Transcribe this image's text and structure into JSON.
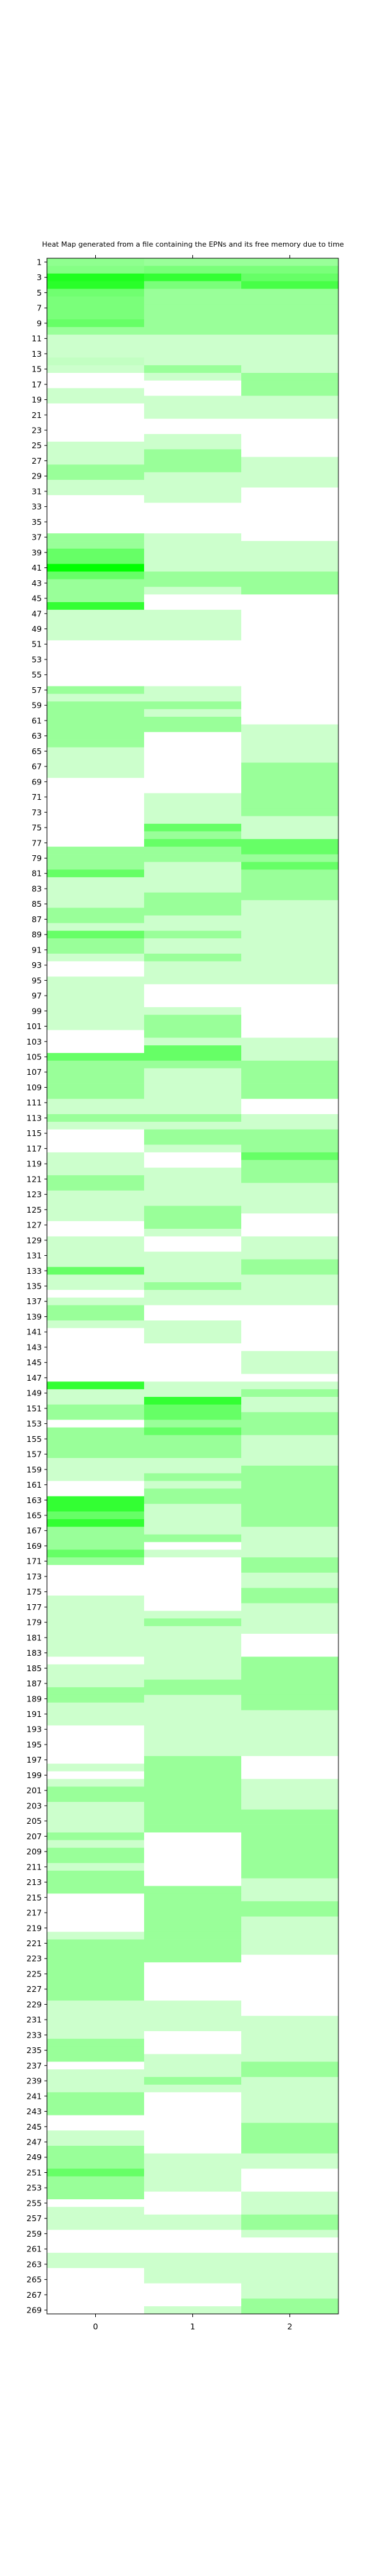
{
  "chart_data": {
    "type": "heatmap",
    "title": "Heat Map generated from a file containing the EPNs and its free memory due to time",
    "xlabel": "",
    "ylabel": "",
    "x_tick_labels": [
      "0",
      "1",
      "2"
    ],
    "y_tick_labels": [
      "1",
      "3",
      "5",
      "7",
      "9",
      "11",
      "13",
      "15",
      "17",
      "19",
      "21",
      "23",
      "25",
      "27",
      "29",
      "31",
      "33",
      "35",
      "37",
      "39",
      "41",
      "43",
      "45",
      "47",
      "49",
      "51",
      "53",
      "55",
      "57",
      "59",
      "61",
      "63",
      "65",
      "67",
      "69",
      "71",
      "73",
      "75",
      "77",
      "79",
      "81",
      "83",
      "85",
      "87",
      "89",
      "91",
      "93",
      "95",
      "97",
      "99",
      "101",
      "103",
      "105",
      "107",
      "109",
      "111",
      "113",
      "115",
      "117",
      "119",
      "121",
      "123",
      "125",
      "127",
      "129",
      "131",
      "133",
      "135",
      "137",
      "139",
      "141",
      "143",
      "145",
      "147",
      "149",
      "151",
      "153",
      "155",
      "157",
      "159",
      "161",
      "163",
      "165",
      "167",
      "169",
      "171",
      "173",
      "175",
      "177",
      "179",
      "181",
      "183",
      "185",
      "187",
      "189",
      "191",
      "193",
      "195",
      "197",
      "199",
      "201",
      "203",
      "205",
      "207",
      "209",
      "211",
      "213",
      "215",
      "217",
      "219",
      "221",
      "223",
      "225",
      "227",
      "229",
      "231",
      "233",
      "235",
      "237",
      "239",
      "241",
      "243",
      "245",
      "247",
      "249",
      "251",
      "253",
      "255",
      "257",
      "259",
      "261",
      "263",
      "265",
      "267",
      "269"
    ],
    "y_range": [
      1,
      269
    ],
    "x_range": [
      0,
      2
    ],
    "grid": false,
    "legend": "none",
    "colors": {
      "low": "#ffffff",
      "high": "#00ff00",
      "frame": "#000000"
    },
    "values": {
      "0": "1.1x1.2x2.2x2.1x1.4x1.3x1.3x1.3x1.5x1x0.5x0.5x0.5x0.6x0.5x0x0x0.5x0.5x0x0x0x0x0x0.5x0.5x0.5x1x1x0.5x0.5x0x0x0x0x0x1x1x1.5x1.5x2.5x1.5x1x1x1x2x0.5x0.5x0.5x0.5x0x0x0x0x0x0x1x0.5x1x1x1x1x1x1x0.5x0.5x0.5x0.5x0x0x0x0x0x0x0x0x0x1x1x1x1.5x0.5x0.5x0.5x0.5x1x1x0.5x1.5x1x1x0.5x0x0x0.5x0.5x0.5x0.5x0.5x0.5x0.5x0x0x0x1.5x1x1x1x1x1x0.5x0.5x1x0.5x0x0x0x0.5x0.5x0.5x1x1x0.5x0.5x0.5x0.5x0x0x0.5x0.5x0.5x0.5x1.5x0.5x0.5x0x0.5x1x1x0.5x0x0x0x0x0x0x0x2x0.5x0.5x1x1x0x1x1x1x1x0.5x0.5x0.5x0x0x2x2x1.5x2x1x1x1x1.5x1x0x0x0x0x0.5x0.5x0.5x0.5x0.5x0.5x0.5x0.5x0x0.5x0.5x0.5x1x1x0.5x0.5x0.5x0x0x0x0x0x0.5x0x0.5x1x1x0.5x0.5x0.5x0.5x1x0.5x1x1x0.5x1x1x1x0x0x0x0x0x0.5x1x1x1x1x1x1x1x1x0.5x0.5x0.5x0.5x0.5x1x1x1x0x0.5x0.5x0.5x1x1x1x0x0x0.5x0.5x1x1x1x1.5x1x1x1x0x0.5x0.5x0.5x0x0x0x0.5x0.5x0x0x0x0x0x0x0.5x0.5x0x0x0x1.5x0.5x0.5x0.5x0.5x0.5x0x0x0.5x0.5x0.5x0.5x0x0x0",
      "1": "1x1.3x2x1.3x1x1x1x1x1x1x0.5x0.5x0.5x0.5x1x0.5x0x0x0.5x0.5x0.5x0x0x0.5x0.5x1x1x1x0.5x0.5x0.5x0.5x0x0x0x0x0.5x0.5x0.5x0.5x0.5x1x1x0.5x0x0x0.5x0.5x0.5x0.5x0x0x0x0x0x0x0.5x0.5x1x0.5x1x1x0x0x0x0x0x0x0x0x0.5x0.5x0.5x0.5x1.5x1x1.5x1x1x0.5x0.5x0.5x0.5x1x1x1x0.5x0.5x1x0.5x0.5x1x0.5x0.5x0.5x0x0x0x0.5x1x1x1x0.5x1.5x1.5x1x0.5x0.5x0.5x0.5x0.5x0.5x1x0.5x1x1x0.5x0x0x0.5x0.5x0.5x0.5x0.5x1x1x1x0.5x0x0x0.5x0.5x0.5x0.5x1x0.5x0.5x0x0x0.5x0.5x0.5x0x0x0x0x0x0.5x0.5x2x1.5x1.5x1x1.5x1x1x1x0.5x0.5x1x0.5x1x1x0.5x0.5x0.5x0.5x1x0x0.5x0x0x0x0x0x0x0x0.5x1x0.5x0.5x0.5x0.5x0.5x0.5x0.5x1x1x0.5x0.5x0.5x0.5x0.5x0.5x0.5x0.5x1x1x1x1x1x1x1x1x1x1x0x0x0x0x0x0x0x1x1x1x1x1x1x1x1x1x1x0x0x0x0x0x0.5x0.5x0.5x0.5x0x0x0x0.5x0.5x0.5x1x0.5x0x0x0x0x0x0x0x0x0.5x0.5x0.5x0.5x0.5x0x0x0x0.5x0.5x0x0x0x0.5x0.5x0.5x0.5x0x0x0x0.5x0.5x0.5x1x1x0.5x1x1x1x1x0.5x0.5x0.5x0x0x0x0x0x0x0x0x0x0.5x0.5x1x1x0.5x0.5x0.5x0x0.5x0.5x0.5x0.5x0x0x0x0.5x0.5x0.5x1x0.5x0.5x1x1x0x0x0.5x0.5x0.5x0x0x0x0.5x0.5x0.5x0.5x0x0x0x0x0.5x0.5x0.5x0x0x0x0x1x1x0.5x0.5x0.5x0x0x0",
      "2": "1x1.3x1.5x1.8x1x1x1x1x1x1x0.5x0.5x0.5x0.5x0.5x1x1x1x0.5x0.5x0.5x0x0x0x0x0x0.5x0.5x0.5x0.5x0x0x0x0x0x0x0x0.5x0.5x0.5x0.5x1x1x1x0x0x0x0x0x0x0x0x0x0x0x0x0x0x0x0x0x0.5x0.5x0.5x0.5x0.5x1x1x1x1x1x1x1x0.5x0.5x0.5x1.5x1.5x1x1.5x1x1x1x1x0.5x0.5x0.5x0.5x0.5x0.5x0.5x0.5x0.5x0.5x0.5x0x0x0x0x0x0x0x0.5x0.5x0.5x1x1x1x1x1x0x0x0.5x0.5x1x1x1x1.5x1x1x1x0.5x0.5x0.5x0.5x0x0x0x0.5x0.5x0.5x1x1x0.5x0.5x0.5x0.5x0x0x0x0x0x0x0.5x0.5x0.5x0x0.5x1x0.5x0.5x1x1x1x0.5x0.5x0.5x0.5x1x1x1x1x1x1x1x1x0.5x0.5x0.5x0.5x1x1x0.5x0.5x1x1x0.5x0.5x0.5x0.5x0x0x0x1x1x1x1x1x1x1x0.5x0.5x0.5x0.5x0.5x0.5x0x0x0x0.5x0.5x0.5x0.5x1x1x1x1x1x1x1x1x1x0.5x0.5x0.5x1x1x0.5x0.5x0.5x0.5x0.5x0x0x0x0x0x0x0x0x0.5x0.5x0.5x0.5x0.5x0.5x1x1x0.5x0.5x0.5x0.5x0.5x0.5x1x1x1x1x0.5x0.5x0x0x0x0.5x0.5x0.5x1x1x0.5x0x0x0.5x0.5x0.5x0.5x0.5x0.5x1x1x1x0.5x0x0x0x0x0x0x0x0.5x0.5x0.5x1x1x1x0.5x0.5x0.5x0.5x0.5x1x1x0.5x0.5x0.5x0.5x0.5x1x0.5x0.5x0.5x1x1x1.5x1.5x0.5x0.5x0.5x0.5x0x0x0x0.5x0.5x1x1x0.5x0.5x0.5x0.5x0.5x1x1x1x0.5x0.5x0x0x0x0x0x0x0x0x0x0.5x0x0x0x0x0x0x0.5x0.5x1x1x1"
    }
  }
}
